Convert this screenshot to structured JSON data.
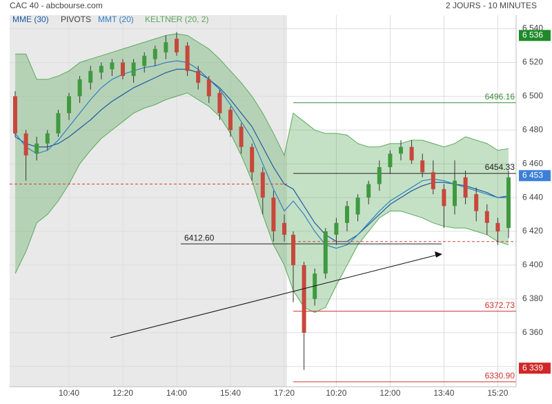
{
  "chart_data": {
    "type": "candlestick",
    "title": "CAC 40 - abcbourse.com",
    "subtitle": "2 JOURS - 10 MINUTES",
    "categories": [
      null,
      null,
      null,
      null,
      null,
      "10:40",
      null,
      null,
      null,
      null,
      "12:20",
      null,
      null,
      null,
      null,
      "14:00",
      null,
      null,
      null,
      null,
      "15:40",
      null,
      null,
      null,
      null,
      "17:20",
      null,
      null,
      null,
      null,
      "10:20",
      null,
      null,
      null,
      null,
      "12:00",
      null,
      null,
      null,
      null,
      "13:40",
      null,
      null,
      null,
      null,
      "15:20",
      null
    ],
    "ohlc": [
      [
        6500,
        6503,
        6476,
        6478
      ],
      [
        6478,
        6480,
        6450,
        6465
      ],
      [
        6466,
        6476,
        6462,
        6472
      ],
      [
        6472,
        6480,
        6468,
        6478
      ],
      [
        6478,
        6492,
        6476,
        6490
      ],
      [
        6490,
        6502,
        6486,
        6500
      ],
      [
        6500,
        6512,
        6496,
        6510
      ],
      [
        6508,
        6518,
        6504,
        6515
      ],
      [
        6514,
        6520,
        6510,
        6518
      ],
      [
        6516,
        6522,
        6512,
        6520
      ],
      [
        6520,
        6522,
        6510,
        6512
      ],
      [
        6512,
        6522,
        6508,
        6520
      ],
      [
        6518,
        6526,
        6514,
        6524
      ],
      [
        6522,
        6530,
        6518,
        6528
      ],
      [
        6526,
        6536,
        6522,
        6532
      ],
      [
        6534,
        6538,
        6524,
        6526
      ],
      [
        6530,
        6532,
        6512,
        6515
      ],
      [
        6515,
        6518,
        6504,
        6508
      ],
      [
        6510,
        6512,
        6496,
        6500
      ],
      [
        6502,
        6504,
        6486,
        6490
      ],
      [
        6492,
        6494,
        6476,
        6480
      ],
      [
        6482,
        6484,
        6466,
        6470
      ],
      [
        6470,
        6472,
        6450,
        6455
      ],
      [
        6455,
        6458,
        6430,
        6440
      ],
      [
        6440,
        6444,
        6414,
        6420
      ],
      [
        6425,
        6430,
        6414,
        6418
      ],
      [
        6418,
        6420,
        6378,
        6400
      ],
      [
        6400,
        6402,
        6338,
        6360
      ],
      [
        6380,
        6398,
        6376,
        6395
      ],
      [
        6395,
        6422,
        6392,
        6420
      ],
      [
        6418,
        6428,
        6412,
        6425
      ],
      [
        6425,
        6438,
        6420,
        6435
      ],
      [
        6430,
        6442,
        6426,
        6440
      ],
      [
        6440,
        6450,
        6436,
        6448
      ],
      [
        6448,
        6462,
        6444,
        6458
      ],
      [
        6458,
        6468,
        6454,
        6466
      ],
      [
        6466,
        6474,
        6462,
        6470
      ],
      [
        6470,
        6474,
        6460,
        6462
      ],
      [
        6462,
        6466,
        6452,
        6455
      ],
      [
        6455,
        6462,
        6442,
        6445
      ],
      [
        6445,
        6448,
        6422,
        6435
      ],
      [
        6435,
        6462,
        6430,
        6450
      ],
      [
        6452,
        6456,
        6436,
        6440
      ],
      [
        6442,
        6446,
        6426,
        6432
      ],
      [
        6432,
        6436,
        6418,
        6425
      ],
      [
        6425,
        6428,
        6412,
        6420
      ],
      [
        6422,
        6456,
        6416,
        6452
      ]
    ],
    "up_color": "#3f9a3f",
    "down_color": "#c8473c",
    "series": [
      {
        "name": "MME (30)",
        "color": "#1d5aa0",
        "values": [
          6476,
          6472,
          6470,
          6470,
          6472,
          6476,
          6481,
          6486,
          6492,
          6497,
          6501,
          6505,
          6508,
          6511,
          6514,
          6516,
          6516,
          6514,
          6510,
          6505,
          6498,
          6490,
          6482,
          6470,
          6458,
          6448,
          6445,
          6435,
          6425,
          6418,
          6414,
          6414,
          6418,
          6424,
          6430,
          6436,
          6440,
          6444,
          6447,
          6449,
          6449,
          6448,
          6447,
          6445,
          6443,
          6440,
          6441
        ]
      },
      {
        "name": "MMT (20)",
        "color": "#2f7fc4",
        "values": [
          6478,
          6470,
          6466,
          6468,
          6474,
          6482,
          6490,
          6498,
          6505,
          6510,
          6513,
          6515,
          6517,
          6518,
          6520,
          6521,
          6520,
          6516,
          6510,
          6504,
          6495,
          6485,
          6475,
          6460,
          6445,
          6432,
          6438,
          6430,
          6420,
          6412,
          6410,
          6412,
          6418,
          6425,
          6432,
          6438,
          6442,
          6446,
          6450,
          6451,
          6450,
          6448,
          6446,
          6444,
          6442,
          6440,
          6440
        ]
      },
      {
        "name": "KELTNER (20, 2)",
        "color": "#5aa85a",
        "upper": [
          6525,
          6525,
          6510,
          6510,
          6512,
          6515,
          6520,
          6522,
          6524,
          6526,
          6528,
          6530,
          6532,
          6534,
          6536,
          6537,
          6536,
          6532,
          6528,
          6522,
          6515,
          6508,
          6500,
          6490,
          6478,
          6465,
          6490,
          6485,
          6480,
          6478,
          6478,
          6477,
          6472,
          6470,
          6470,
          6472,
          6472,
          6474,
          6474,
          6472,
          6470,
          6472,
          6476,
          6474,
          6472,
          6468,
          6469
        ],
        "lower": [
          6395,
          6408,
          6425,
          6430,
          6438,
          6448,
          6460,
          6468,
          6475,
          6480,
          6485,
          6490,
          6493,
          6495,
          6498,
          6500,
          6502,
          6498,
          6494,
          6488,
          6478,
          6465,
          6450,
          6430,
          6412,
          6400,
          6385,
          6375,
          6372,
          6375,
          6388,
          6400,
          6412,
          6420,
          6428,
          6432,
          6432,
          6430,
          6428,
          6425,
          6423,
          6422,
          6422,
          6420,
          6418,
          6414,
          6412
        ]
      }
    ],
    "pivots": {
      "name": "PIVOTS",
      "color": "#d04040",
      "values": [
        6448,
        6414
      ]
    },
    "levels": [
      {
        "value": 6496.16,
        "label": "6496.16",
        "color": "#3a8a3a"
      },
      {
        "value": 6454.33,
        "label": "6454.33",
        "color": "#222222"
      },
      {
        "value": 6412.6,
        "label": "6412.60",
        "color": "#222222"
      },
      {
        "value": 6372.73,
        "label": "6372.73",
        "color": "#d03030"
      },
      {
        "value": 6330.9,
        "label": "6330.90",
        "color": "#d03030"
      }
    ],
    "price_tags": [
      {
        "value": 6536,
        "label": "6 536",
        "color": "#1f8a2a"
      },
      {
        "value": 6453,
        "label": "6 453",
        "color": "#3c7fd8"
      },
      {
        "value": 6339,
        "label": "6 339",
        "color": "#d02828"
      }
    ],
    "ylim": [
      6328,
      6548
    ],
    "yticks": [
      {
        "value": 6340,
        "label": "6 340"
      },
      {
        "value": 6360,
        "label": "6 360"
      },
      {
        "value": 6380,
        "label": "6 380"
      },
      {
        "value": 6400,
        "label": "6 400"
      },
      {
        "value": 6420,
        "label": "6 420"
      },
      {
        "value": 6440,
        "label": "6 440"
      },
      {
        "value": 6460,
        "label": "6 460"
      },
      {
        "value": 6480,
        "label": "6 480"
      },
      {
        "value": 6500,
        "label": "6 500"
      },
      {
        "value": 6520,
        "label": "6 520"
      },
      {
        "value": 6540,
        "label": "6 540"
      }
    ],
    "grid": true
  }
}
